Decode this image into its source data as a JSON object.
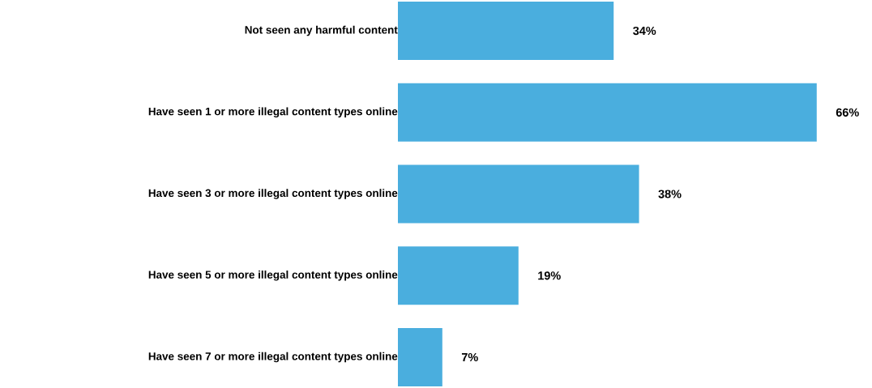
{
  "chart_data": {
    "type": "bar",
    "orientation": "horizontal",
    "categories": [
      "Not seen any harmful content",
      "Have seen 1 or more illegal content types online",
      "Have seen 3 or more illegal content types online",
      "Have seen 5 or more illegal content types online",
      "Have seen 7 or more illegal content types online"
    ],
    "values": [
      34,
      66,
      38,
      19,
      7
    ],
    "value_labels": [
      "34%",
      "66%",
      "38%",
      "19%",
      "7%"
    ],
    "color": "#4aaede"
  }
}
